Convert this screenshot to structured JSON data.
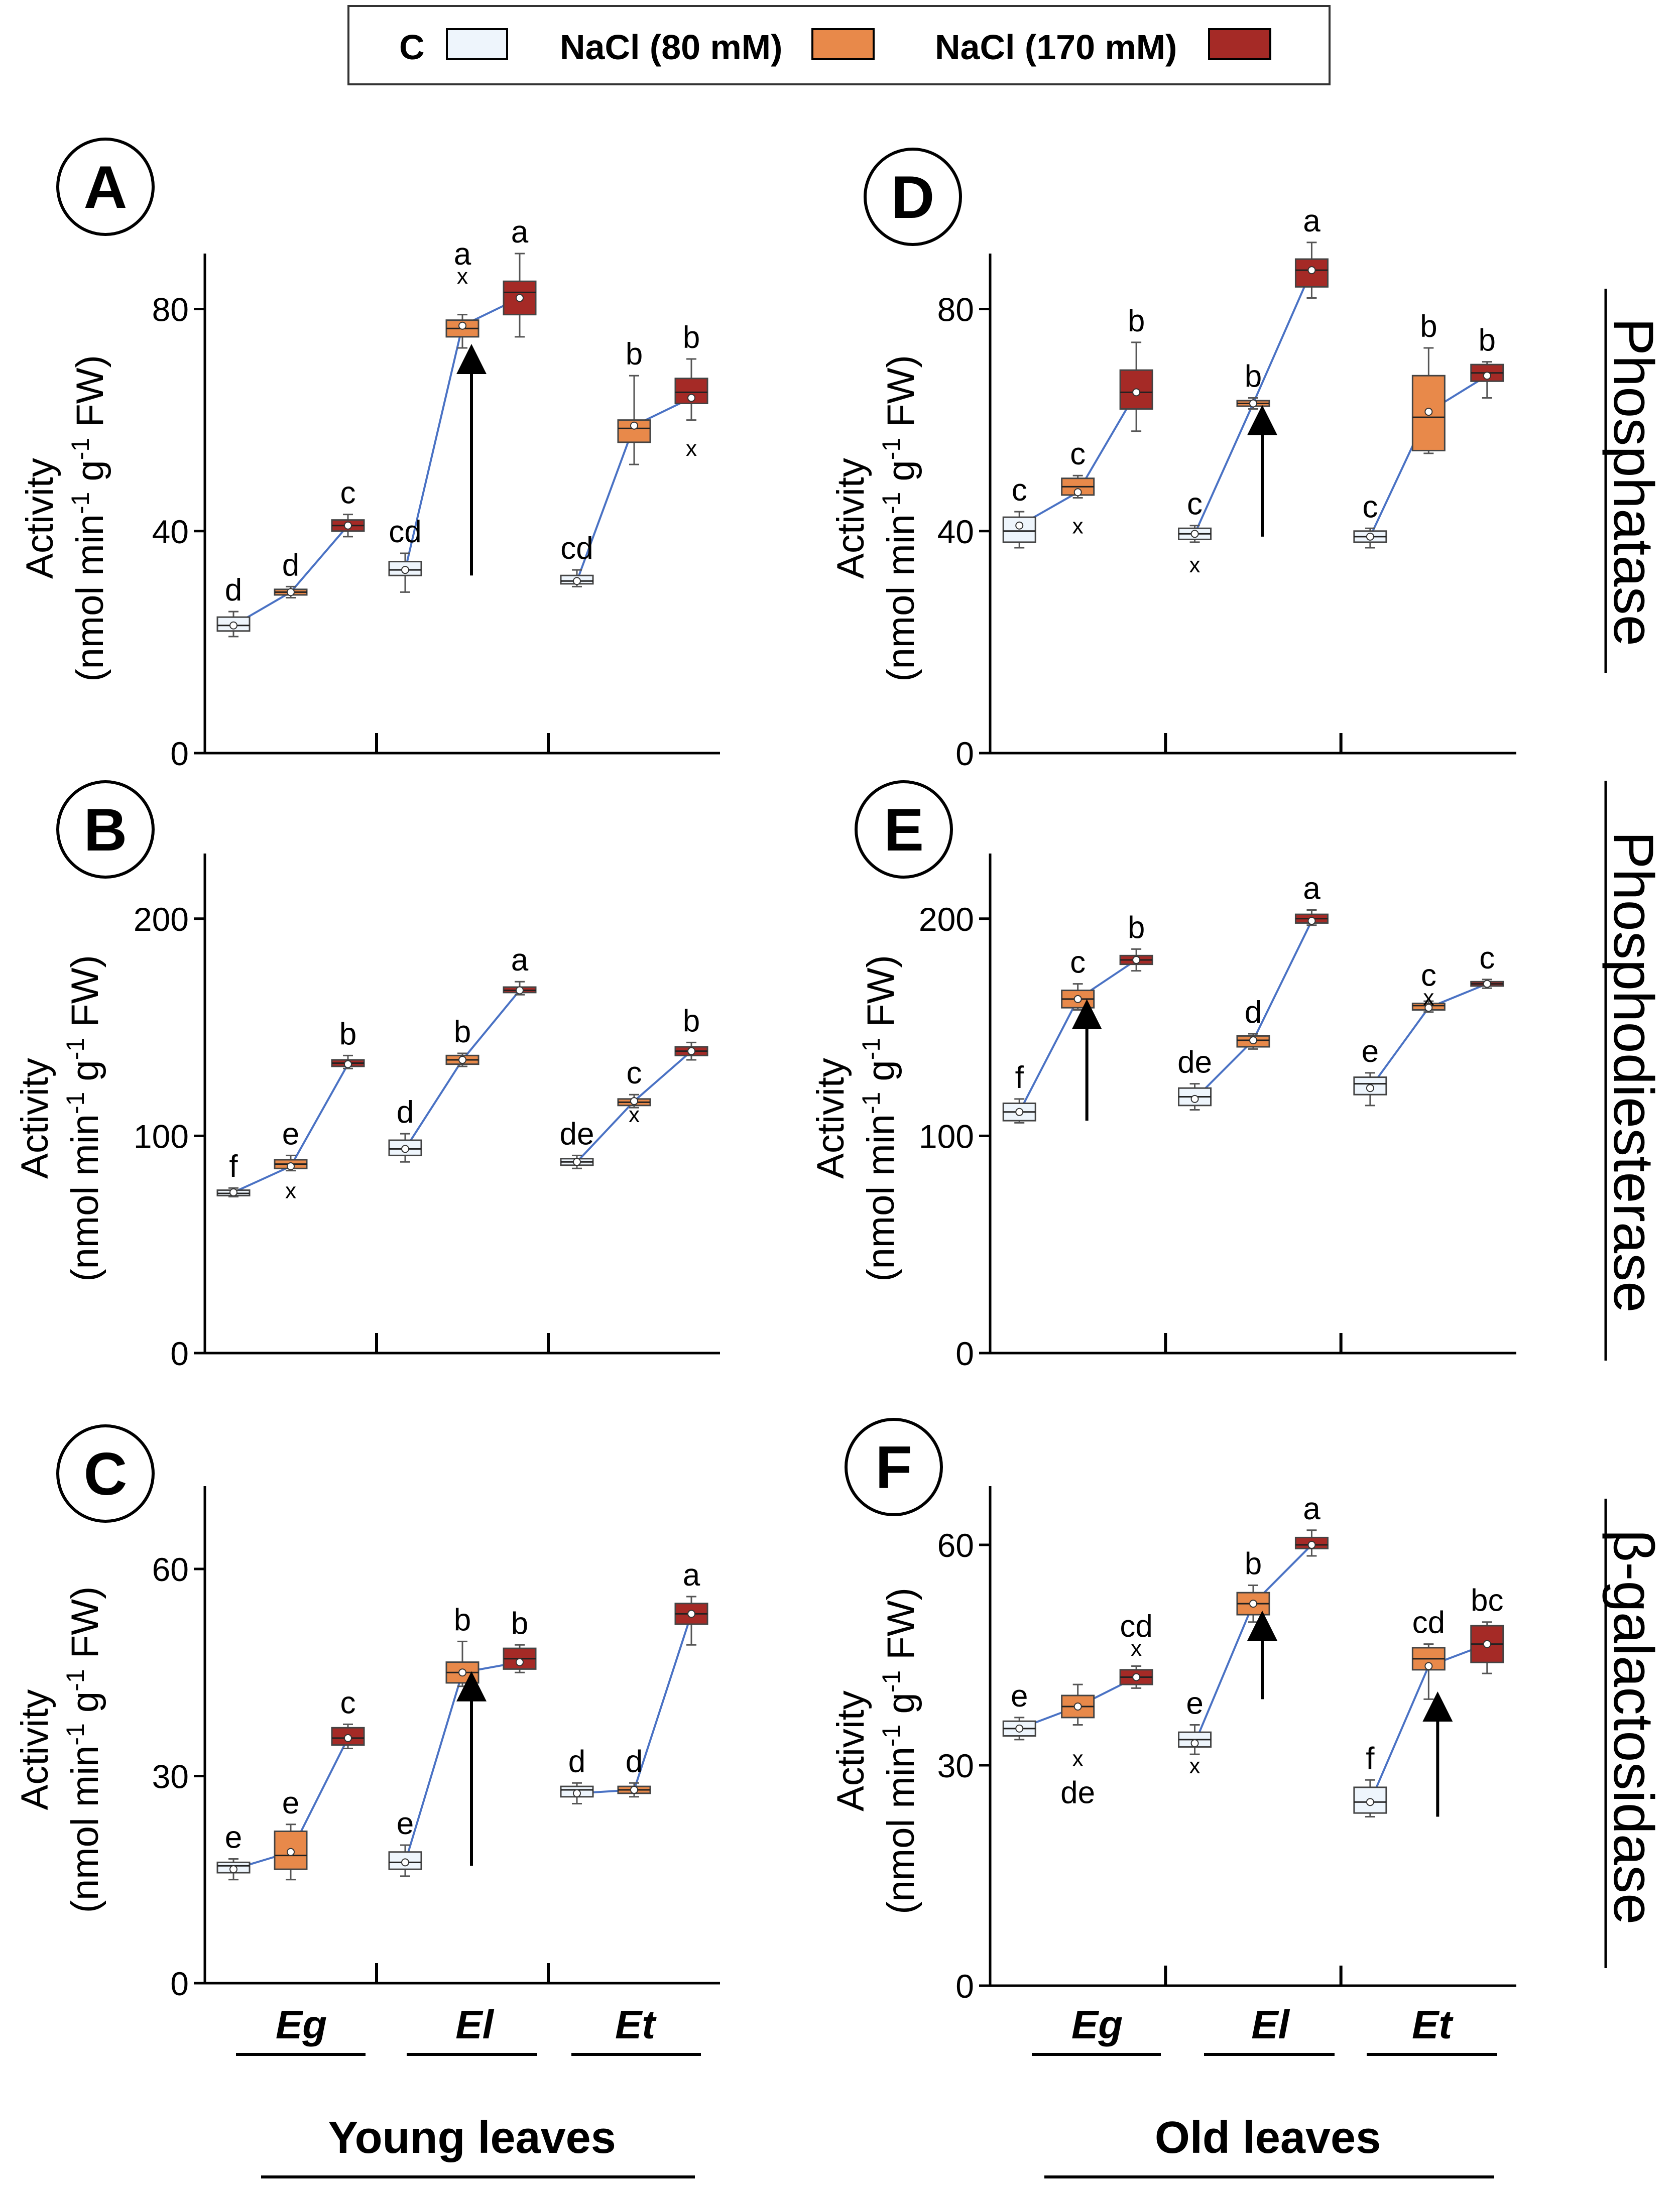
{
  "legend": {
    "items": [
      {
        "label": "C",
        "color": "#eef5fc"
      },
      {
        "label": "NaCl (80 mM)",
        "color": "#e8894a"
      },
      {
        "label": "NaCl (170 mM)",
        "color": "#a52a26"
      }
    ]
  },
  "y_label": {
    "line1": "Activity",
    "line2_prefix": "(nmol min",
    "sup1": "-1",
    "line2_mid": " g",
    "sup2": "-1",
    "line2_suffix": " FW)"
  },
  "species": [
    "Eg",
    "El",
    "Et"
  ],
  "group_titles": {
    "left": "Young leaves",
    "right": "Old leaves"
  },
  "enzymes": [
    "Phosphatase",
    "Phosphodiesterase",
    "β-galactosidase"
  ],
  "colors": {
    "line": "#4a72c4",
    "c_fill": "#eef5fc",
    "n80_fill": "#e8894a",
    "n170_fill": "#a52a26"
  },
  "chart_data": [
    {
      "type": "box",
      "panel": "A",
      "leaves": "Young leaves",
      "enzyme": "Phosphatase",
      "ylim": [
        0,
        90
      ],
      "yticks": [
        0,
        40,
        80
      ],
      "categories": [
        "Eg",
        "El",
        "Et"
      ],
      "series": [
        {
          "name": "C",
          "boxes": [
            {
              "min": 21,
              "q1": 22,
              "median": 23,
              "q3": 24.5,
              "max": 25.5,
              "mean": 23,
              "letter": "d"
            },
            {
              "min": 29,
              "q1": 32,
              "median": 33,
              "q3": 34.5,
              "max": 36,
              "mean": 33,
              "letter": "cd"
            },
            {
              "min": 30,
              "q1": 30.5,
              "median": 31,
              "q3": 32,
              "max": 33,
              "mean": 31,
              "letter": "cd"
            }
          ]
        },
        {
          "name": "NaCl (80 mM)",
          "boxes": [
            {
              "min": 28,
              "q1": 28.5,
              "median": 29,
              "q3": 29.5,
              "max": 30,
              "mean": 29,
              "letter": "d"
            },
            {
              "min": 73,
              "q1": 75,
              "median": 76.5,
              "q3": 78,
              "max": 79,
              "mean": 77,
              "letter": "a",
              "outlier": 86
            },
            {
              "min": 52,
              "q1": 56,
              "median": 58.5,
              "q3": 60,
              "max": 68,
              "mean": 59,
              "letter": "b"
            }
          ]
        },
        {
          "name": "NaCl (170 mM)",
          "boxes": [
            {
              "min": 39,
              "q1": 40,
              "median": 41,
              "q3": 42,
              "max": 43,
              "mean": 41,
              "letter": "c"
            },
            {
              "min": 75,
              "q1": 79,
              "median": 83,
              "q3": 85,
              "max": 90,
              "mean": 82,
              "letter": "a"
            },
            {
              "min": 60,
              "q1": 63,
              "median": 65,
              "q3": 67.5,
              "max": 71,
              "mean": 64,
              "letter": "b",
              "outlier": 55
            }
          ]
        }
      ],
      "arrows": [
        {
          "category": "El",
          "series": "NaCl (80 mM)",
          "from": 32,
          "to": 71
        }
      ]
    },
    {
      "type": "box",
      "panel": "B",
      "leaves": "Young leaves",
      "enzyme": "Phosphodiesterase",
      "ylim": [
        0,
        230
      ],
      "yticks": [
        0,
        100,
        200
      ],
      "categories": [
        "Eg",
        "El",
        "Et"
      ],
      "series": [
        {
          "name": "C",
          "boxes": [
            {
              "min": 72,
              "q1": 72.5,
              "median": 73.5,
              "q3": 75,
              "max": 76,
              "mean": 74,
              "letter": "f"
            },
            {
              "min": 88,
              "q1": 91,
              "median": 94,
              "q3": 98,
              "max": 101,
              "mean": 94,
              "letter": "d"
            },
            {
              "min": 85,
              "q1": 86.5,
              "median": 88,
              "q3": 89.5,
              "max": 91,
              "mean": 88,
              "letter": "de"
            }
          ]
        },
        {
          "name": "NaCl (80 mM)",
          "boxes": [
            {
              "min": 84,
              "q1": 85,
              "median": 87,
              "q3": 89,
              "max": 91,
              "mean": 86,
              "letter": "e",
              "outlier": 75
            },
            {
              "min": 132,
              "q1": 133,
              "median": 135,
              "q3": 137,
              "max": 138,
              "mean": 135,
              "letter": "b"
            },
            {
              "min": 113,
              "q1": 114,
              "median": 115.5,
              "q3": 117,
              "max": 119,
              "mean": 116,
              "letter": "c",
              "outlier": 110
            }
          ]
        },
        {
          "name": "NaCl (170 mM)",
          "boxes": [
            {
              "min": 131,
              "q1": 132,
              "median": 133.5,
              "q3": 135,
              "max": 137,
              "mean": 133,
              "letter": "b"
            },
            {
              "min": 165,
              "q1": 166,
              "median": 167,
              "q3": 168.5,
              "max": 171,
              "mean": 167,
              "letter": "a"
            },
            {
              "min": 135,
              "q1": 137,
              "median": 139,
              "q3": 141,
              "max": 143,
              "mean": 139,
              "letter": "b"
            }
          ]
        }
      ],
      "arrows": []
    },
    {
      "type": "box",
      "panel": "C",
      "leaves": "Young leaves",
      "enzyme": "β-galactosidase",
      "ylim": [
        0,
        72
      ],
      "yticks": [
        0,
        30,
        60
      ],
      "categories": [
        "Eg",
        "El",
        "Et"
      ],
      "series": [
        {
          "name": "C",
          "boxes": [
            {
              "min": 15,
              "q1": 16,
              "median": 17,
              "q3": 17.5,
              "max": 18,
              "mean": 16.5,
              "letter": "e"
            },
            {
              "min": 15.5,
              "q1": 16.5,
              "median": 17.5,
              "q3": 19,
              "max": 20,
              "mean": 17.5,
              "letter": "e"
            },
            {
              "min": 26,
              "q1": 27,
              "median": 28,
              "q3": 28.5,
              "max": 29,
              "mean": 27.5,
              "letter": "d"
            }
          ]
        },
        {
          "name": "NaCl (80 mM)",
          "boxes": [
            {
              "min": 15,
              "q1": 16.5,
              "median": 18.5,
              "q3": 22,
              "max": 23,
              "mean": 19,
              "letter": "e"
            },
            {
              "min": 43,
              "q1": 43.5,
              "median": 45,
              "q3": 46.5,
              "max": 49.5,
              "mean": 45,
              "letter": "b"
            },
            {
              "min": 27,
              "q1": 27.5,
              "median": 28,
              "q3": 28.5,
              "max": 29,
              "mean": 28,
              "letter": "d"
            }
          ]
        },
        {
          "name": "NaCl (170 mM)",
          "boxes": [
            {
              "min": 34,
              "q1": 34.5,
              "median": 35.5,
              "q3": 37,
              "max": 37.5,
              "mean": 35.5,
              "letter": "c"
            },
            {
              "min": 45,
              "q1": 45.5,
              "median": 47,
              "q3": 48.5,
              "max": 49,
              "mean": 46.5,
              "letter": "b"
            },
            {
              "min": 49,
              "q1": 52,
              "median": 53.5,
              "q3": 55,
              "max": 56,
              "mean": 53.5,
              "letter": "a"
            }
          ]
        }
      ],
      "arrows": [
        {
          "category": "El",
          "series": "NaCl (80 mM)",
          "from": 17,
          "to": 43
        }
      ]
    },
    {
      "type": "box",
      "panel": "D",
      "leaves": "Old leaves",
      "enzyme": "Phosphatase",
      "ylim": [
        0,
        90
      ],
      "yticks": [
        0,
        40,
        80
      ],
      "categories": [
        "Eg",
        "El",
        "Et"
      ],
      "series": [
        {
          "name": "C",
          "boxes": [
            {
              "min": 37,
              "q1": 38,
              "median": 40,
              "q3": 42.5,
              "max": 43.5,
              "mean": 41,
              "letter": "c"
            },
            {
              "min": 38,
              "q1": 38.5,
              "median": 39.5,
              "q3": 40.5,
              "max": 41,
              "mean": 39.5,
              "letter": "c",
              "outlier": 34
            },
            {
              "min": 37,
              "q1": 38,
              "median": 39,
              "q3": 40,
              "max": 40.5,
              "mean": 39,
              "letter": "c"
            }
          ]
        },
        {
          "name": "NaCl (80 mM)",
          "boxes": [
            {
              "min": 46,
              "q1": 46.5,
              "median": 48,
              "q3": 49.5,
              "max": 50,
              "mean": 47,
              "letter": "c",
              "outlier": 41
            },
            {
              "min": 62,
              "q1": 62.5,
              "median": 63,
              "q3": 63.5,
              "max": 64,
              "mean": 63,
              "letter": "b"
            },
            {
              "min": 54,
              "q1": 54.5,
              "median": 60.5,
              "q3": 68,
              "max": 73,
              "mean": 61.5,
              "letter": "b"
            }
          ]
        },
        {
          "name": "NaCl (170 mM)",
          "boxes": [
            {
              "min": 58,
              "q1": 62,
              "median": 65,
              "q3": 69,
              "max": 74,
              "mean": 65,
              "letter": "b"
            },
            {
              "min": 82,
              "q1": 84,
              "median": 87,
              "q3": 89,
              "max": 92,
              "mean": 87,
              "letter": "a"
            },
            {
              "min": 64,
              "q1": 67,
              "median": 68.5,
              "q3": 70,
              "max": 70.5,
              "mean": 68,
              "letter": "b"
            }
          ]
        }
      ],
      "arrows": [
        {
          "category": "El",
          "series": "NaCl (80 mM)",
          "from": 39,
          "to": 60
        }
      ]
    },
    {
      "type": "box",
      "panel": "E",
      "leaves": "Old leaves",
      "enzyme": "Phosphodiesterase",
      "ylim": [
        0,
        230
      ],
      "yticks": [
        0,
        100,
        200
      ],
      "categories": [
        "Eg",
        "El",
        "Et"
      ],
      "series": [
        {
          "name": "C",
          "boxes": [
            {
              "min": 106,
              "q1": 107,
              "median": 111,
              "q3": 115,
              "max": 117,
              "mean": 111,
              "letter": "f"
            },
            {
              "min": 112,
              "q1": 114,
              "median": 118,
              "q3": 122,
              "max": 124,
              "mean": 117,
              "letter": "de"
            },
            {
              "min": 114,
              "q1": 119,
              "median": 124,
              "q3": 127,
              "max": 129,
              "mean": 122,
              "letter": "e"
            }
          ]
        },
        {
          "name": "NaCl (80 mM)",
          "boxes": [
            {
              "min": 158,
              "q1": 159,
              "median": 163,
              "q3": 167,
              "max": 170,
              "mean": 163,
              "letter": "c"
            },
            {
              "min": 140,
              "q1": 141,
              "median": 144,
              "q3": 146,
              "max": 147,
              "mean": 144,
              "letter": "d"
            },
            {
              "min": 157,
              "q1": 158,
              "median": 160,
              "q3": 161,
              "max": 162,
              "mean": 159,
              "letter": "c",
              "outlier": 164
            }
          ]
        },
        {
          "name": "NaCl (170 mM)",
          "boxes": [
            {
              "min": 176,
              "q1": 179,
              "median": 181,
              "q3": 183,
              "max": 186,
              "mean": 181,
              "letter": "b"
            },
            {
              "min": 197,
              "q1": 198,
              "median": 200,
              "q3": 202,
              "max": 204,
              "mean": 199,
              "letter": "a"
            },
            {
              "min": 168,
              "q1": 169,
              "median": 170,
              "q3": 171,
              "max": 172,
              "mean": 170,
              "letter": "c"
            }
          ]
        }
      ],
      "arrows": [
        {
          "category": "Eg",
          "series": "NaCl (80 mM)",
          "from": 107,
          "to": 156
        }
      ]
    },
    {
      "type": "box",
      "panel": "F",
      "leaves": "Old leaves",
      "enzyme": "β-galactosidase",
      "ylim": [
        0,
        68
      ],
      "yticks": [
        0,
        30,
        60
      ],
      "categories": [
        "Eg",
        "El",
        "Et"
      ],
      "series": [
        {
          "name": "C",
          "boxes": [
            {
              "min": 33.5,
              "q1": 34,
              "median": 35,
              "q3": 36,
              "max": 36.5,
              "mean": 35,
              "letter": "e"
            },
            {
              "min": 31.5,
              "q1": 32.5,
              "median": 33.5,
              "q3": 34.5,
              "max": 35.5,
              "mean": 33,
              "letter": "e",
              "outlier": 30
            },
            {
              "min": 23,
              "q1": 23.5,
              "median": 25,
              "q3": 27,
              "max": 28,
              "mean": 25,
              "letter": "f"
            }
          ]
        },
        {
          "name": "NaCl (80 mM)",
          "boxes": [
            {
              "min": 35.5,
              "q1": 36.5,
              "median": 38,
              "q3": 39.5,
              "max": 41,
              "mean": 38,
              "letter": "de",
              "outlier": 31,
              "letter_below": true
            },
            {
              "min": 49.5,
              "q1": 50.5,
              "median": 52,
              "q3": 53.5,
              "max": 54.5,
              "mean": 52,
              "letter": "b"
            },
            {
              "min": 39,
              "q1": 43,
              "median": 44.5,
              "q3": 46,
              "max": 46.5,
              "mean": 43.5,
              "letter": "cd"
            }
          ]
        },
        {
          "name": "NaCl (170 mM)",
          "boxes": [
            {
              "min": 40.5,
              "q1": 41,
              "median": 42,
              "q3": 43,
              "max": 43.5,
              "mean": 42,
              "letter": "cd",
              "outlier": 46
            },
            {
              "min": 58.5,
              "q1": 59.5,
              "median": 60,
              "q3": 61,
              "max": 62,
              "mean": 60,
              "letter": "a"
            },
            {
              "min": 42.5,
              "q1": 44,
              "median": 46.5,
              "q3": 49,
              "max": 49.5,
              "mean": 46.5,
              "letter": "bc"
            }
          ]
        }
      ],
      "arrows": [
        {
          "category": "El",
          "series": "NaCl (80 mM)",
          "from": 39,
          "to": 49
        },
        {
          "category": "Et",
          "series": "NaCl (80 mM)",
          "from": 23,
          "to": 38
        }
      ]
    }
  ]
}
